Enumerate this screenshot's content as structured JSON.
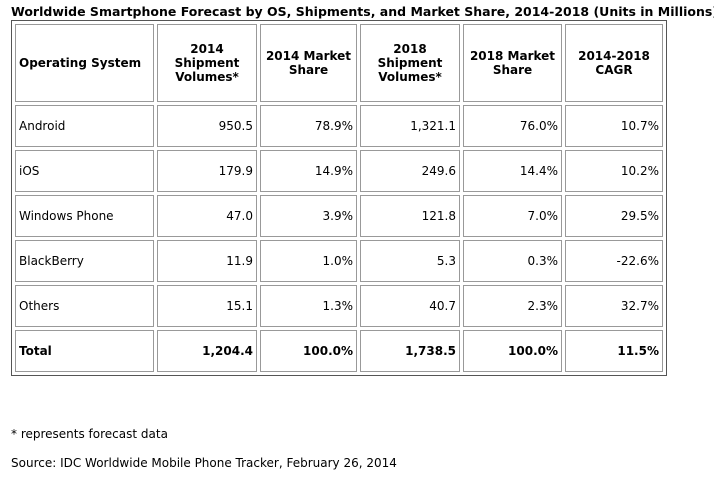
{
  "title": "Worldwide Smartphone Forecast by OS, Shipments, and Market Share, 2014-2018 (Units in Millions)",
  "table": {
    "header": [
      "Operating System",
      "2014 Shipment Volumes*",
      "2014 Market Share",
      "2018 Shipment Volumes*",
      "2018 Market Share",
      "2014-2018 CAGR"
    ],
    "rows": [
      [
        "Android",
        "950.5",
        "78.9%",
        "1,321.1",
        "76.0%",
        "10.7%"
      ],
      [
        "iOS",
        "179.9",
        "14.9%",
        "249.6",
        "14.4%",
        "10.2%"
      ],
      [
        "Windows Phone",
        "47.0",
        "3.9%",
        "121.8",
        "7.0%",
        "29.5%"
      ],
      [
        "BlackBerry",
        "11.9",
        "1.0%",
        "5.3",
        "0.3%",
        "-22.6%"
      ],
      [
        "Others",
        "15.1",
        "1.3%",
        "40.7",
        "2.3%",
        "32.7%"
      ],
      [
        "Total",
        "1,204.4",
        "100.0%",
        "1,738.5",
        "100.0%",
        "11.5%"
      ]
    ]
  },
  "footnotes": [
    "* represents forecast data",
    "Source: IDC Worldwide Mobile Phone Tracker, February 26, 2014"
  ]
}
